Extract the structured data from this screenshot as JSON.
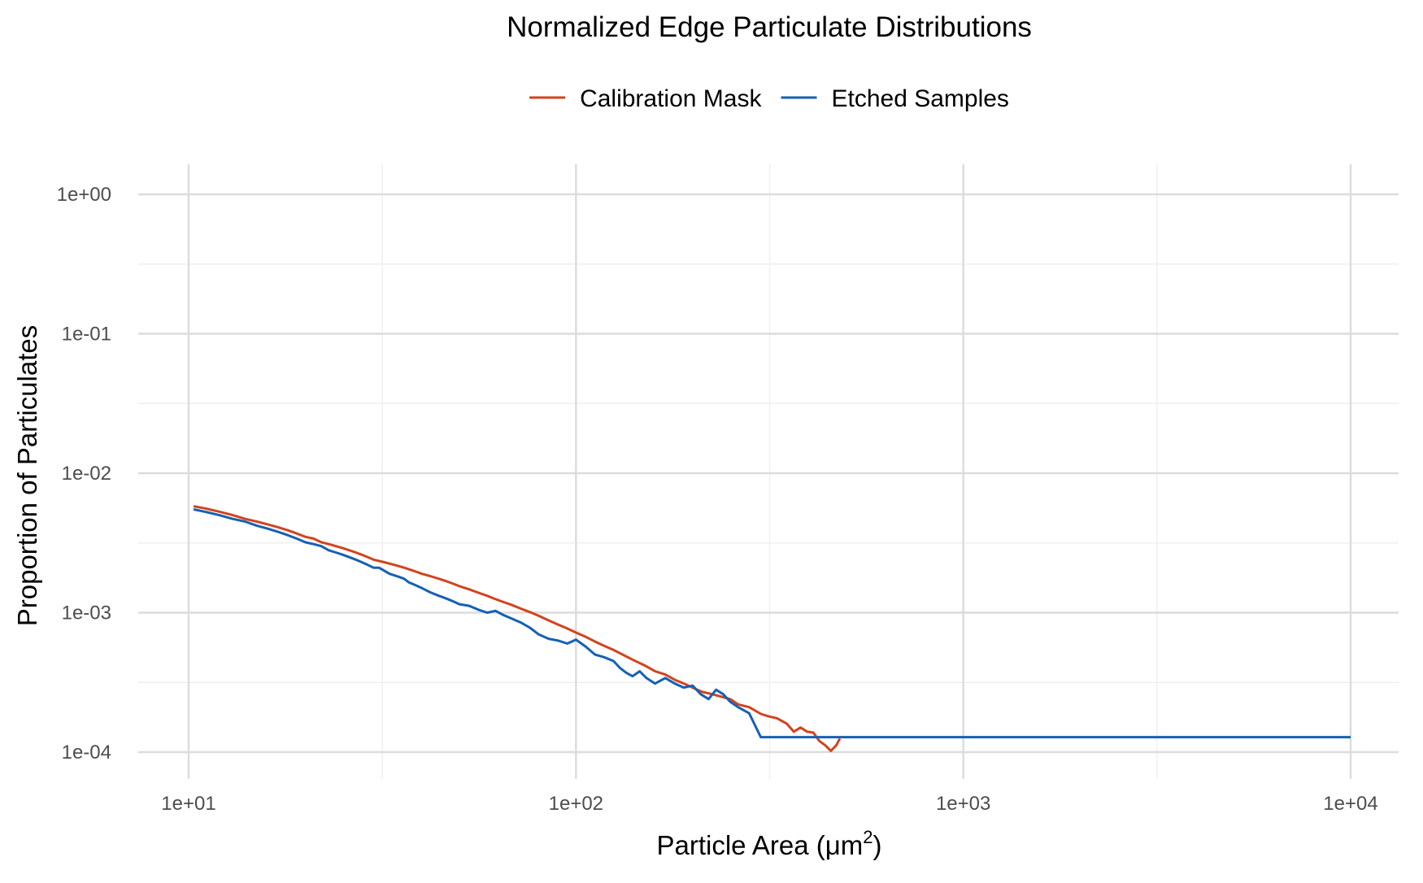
{
  "chart_data": {
    "type": "line",
    "title": "Normalized Edge Particulate Distributions",
    "xlabel": "Particle Area (μm²)",
    "xlabel_parts": {
      "main": "Particle Area (",
      "unit_base": "μm",
      "unit_exp": "2",
      "close": ")"
    },
    "ylabel": "Proportion of Particulates",
    "x_scale": "log10",
    "y_scale": "log10",
    "xlim": [
      10,
      10000
    ],
    "ylim": [
      0.0001,
      1
    ],
    "x_ticks": [
      10,
      100,
      1000,
      10000
    ],
    "x_tick_labels": [
      "1e+01",
      "1e+02",
      "1e+03",
      "1e+04"
    ],
    "y_ticks": [
      1,
      0.1,
      0.01,
      0.001,
      0.0001
    ],
    "y_tick_labels": [
      "1e+00",
      "1e-01",
      "1e-02",
      "1e-03",
      "1e-04"
    ],
    "grid": true,
    "legend_position": "top",
    "series": [
      {
        "name": "Calibration Mask",
        "color": "#d1441e",
        "points": [
          [
            10.3,
            0.0058
          ],
          [
            11,
            0.0056
          ],
          [
            12,
            0.0053
          ],
          [
            13,
            0.005
          ],
          [
            14,
            0.0047
          ],
          [
            15,
            0.0045
          ],
          [
            16,
            0.0043
          ],
          [
            17,
            0.0041
          ],
          [
            18,
            0.0039
          ],
          [
            19,
            0.0037
          ],
          [
            20,
            0.0035
          ],
          [
            21,
            0.0034
          ],
          [
            22,
            0.0032
          ],
          [
            23,
            0.0031
          ],
          [
            24,
            0.003
          ],
          [
            25,
            0.0029
          ],
          [
            26,
            0.0028
          ],
          [
            27,
            0.0027
          ],
          [
            28,
            0.0026
          ],
          [
            29,
            0.0025
          ],
          [
            30,
            0.0024
          ],
          [
            32,
            0.0023
          ],
          [
            34,
            0.0022
          ],
          [
            36,
            0.0021
          ],
          [
            38,
            0.002
          ],
          [
            40,
            0.0019
          ],
          [
            42,
            0.00183
          ],
          [
            44,
            0.00176
          ],
          [
            46,
            0.00169
          ],
          [
            48,
            0.00162
          ],
          [
            50,
            0.00155
          ],
          [
            53,
            0.00147
          ],
          [
            56,
            0.00139
          ],
          [
            59,
            0.00132
          ],
          [
            62,
            0.00125
          ],
          [
            65,
            0.00119
          ],
          [
            68,
            0.00114
          ],
          [
            72,
            0.00107
          ],
          [
            76,
            0.00101
          ],
          [
            80,
            0.00095
          ],
          [
            85,
            0.00088
          ],
          [
            90,
            0.00082
          ],
          [
            95,
            0.00077
          ],
          [
            100,
            0.00072
          ],
          [
            106,
            0.00067
          ],
          [
            112,
            0.00062
          ],
          [
            118,
            0.00058
          ],
          [
            125,
            0.00054
          ],
          [
            132,
            0.0005
          ],
          [
            140,
            0.00046
          ],
          [
            150,
            0.00042
          ],
          [
            160,
            0.00038
          ],
          [
            170,
            0.00036
          ],
          [
            180,
            0.00033
          ],
          [
            190,
            0.00031
          ],
          [
            200,
            0.00029
          ],
          [
            212,
            0.00027
          ],
          [
            225,
            0.00026
          ],
          [
            237,
            0.00025
          ],
          [
            250,
            0.00024
          ],
          [
            262,
            0.00022
          ],
          [
            280,
            0.00021
          ],
          [
            300,
            0.000188
          ],
          [
            315,
            0.00018
          ],
          [
            330,
            0.000175
          ],
          [
            350,
            0.00016
          ],
          [
            365,
            0.00014
          ],
          [
            380,
            0.00015
          ],
          [
            395,
            0.00014
          ],
          [
            410,
            0.000138
          ],
          [
            425,
            0.00012
          ],
          [
            440,
            0.000112
          ],
          [
            455,
            0.000102
          ],
          [
            470,
            0.000112
          ],
          [
            480,
            0.000125
          ]
        ]
      },
      {
        "name": "Etched Samples",
        "color": "#1660b3",
        "points": [
          [
            10.3,
            0.0055
          ],
          [
            11,
            0.0053
          ],
          [
            12,
            0.005
          ],
          [
            13,
            0.0047
          ],
          [
            14,
            0.0045
          ],
          [
            15,
            0.0042
          ],
          [
            16,
            0.004
          ],
          [
            17,
            0.0038
          ],
          [
            18,
            0.0036
          ],
          [
            19,
            0.0034
          ],
          [
            20,
            0.0032
          ],
          [
            21,
            0.0031
          ],
          [
            22,
            0.003
          ],
          [
            23,
            0.0028
          ],
          [
            24,
            0.0027
          ],
          [
            25,
            0.0026
          ],
          [
            26,
            0.0025
          ],
          [
            27,
            0.0024
          ],
          [
            28,
            0.0023
          ],
          [
            29,
            0.0022
          ],
          [
            30,
            0.0021
          ],
          [
            31,
            0.0021
          ],
          [
            32,
            0.002
          ],
          [
            33,
            0.0019
          ],
          [
            34,
            0.00185
          ],
          [
            35,
            0.0018
          ],
          [
            36,
            0.00175
          ],
          [
            37,
            0.00165
          ],
          [
            38,
            0.0016
          ],
          [
            39,
            0.00155
          ],
          [
            40,
            0.0015
          ],
          [
            42,
            0.0014
          ],
          [
            44,
            0.00133
          ],
          [
            46,
            0.00127
          ],
          [
            48,
            0.00121
          ],
          [
            50,
            0.00115
          ],
          [
            53,
            0.00112
          ],
          [
            56,
            0.00105
          ],
          [
            59,
            0.001
          ],
          [
            62,
            0.00103
          ],
          [
            65,
            0.00096
          ],
          [
            68,
            0.00091
          ],
          [
            72,
            0.00085
          ],
          [
            76,
            0.00078
          ],
          [
            80,
            0.0007
          ],
          [
            85,
            0.00065
          ],
          [
            90,
            0.00063
          ],
          [
            95,
            0.0006
          ],
          [
            100,
            0.00064
          ],
          [
            106,
            0.00057
          ],
          [
            112,
            0.0005
          ],
          [
            118,
            0.00048
          ],
          [
            125,
            0.00045
          ],
          [
            130,
            0.0004
          ],
          [
            135,
            0.00037
          ],
          [
            140,
            0.00035
          ],
          [
            146,
            0.00038
          ],
          [
            152,
            0.00034
          ],
          [
            160,
            0.00031
          ],
          [
            170,
            0.00034
          ],
          [
            180,
            0.00031
          ],
          [
            190,
            0.00029
          ],
          [
            200,
            0.0003
          ],
          [
            210,
            0.00026
          ],
          [
            220,
            0.00024
          ],
          [
            230,
            0.00028
          ],
          [
            240,
            0.00026
          ],
          [
            250,
            0.00023
          ],
          [
            262,
            0.00021
          ],
          [
            280,
            0.00019
          ],
          [
            300,
            0.000128
          ],
          [
            400,
            0.000128
          ],
          [
            480,
            0.000128
          ],
          [
            1000,
            0.000128
          ],
          [
            5000,
            0.000128
          ],
          [
            10000,
            0.000128
          ]
        ]
      }
    ]
  }
}
